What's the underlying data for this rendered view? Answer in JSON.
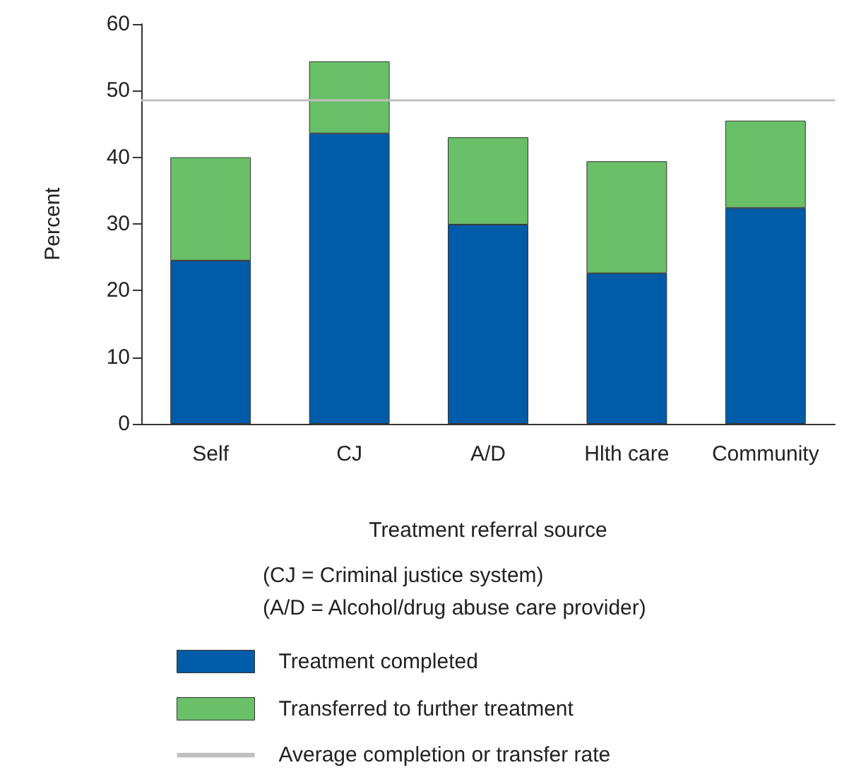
{
  "chart_data": {
    "type": "bar",
    "stacked": true,
    "xlabel": "Treatment referral source",
    "ylabel": "Percent",
    "categories": [
      "Self",
      "CJ",
      "A/D",
      "Hlth care",
      "Community"
    ],
    "series": [
      {
        "name": "Treatment completed",
        "color": "#005ba8",
        "values": [
          24.5,
          43.6,
          29.9,
          22.6,
          32.4
        ]
      },
      {
        "name": "Transferred to further treatment",
        "color": "#6abf69",
        "values": [
          15.5,
          10.8,
          13.1,
          16.8,
          13.1
        ]
      }
    ],
    "ylim": [
      0,
      60
    ],
    "yticks": [
      0,
      10,
      20,
      30,
      40,
      50,
      60
    ],
    "ref_lines": [
      {
        "axis": "y",
        "value": 48.6,
        "label": "Average completion or transfer rate",
        "color": "#bfbfbf"
      }
    ],
    "annotations": [
      "(CJ = Criminal justice system)",
      "(A/D = Alcohol/drug abuse care provider)"
    ],
    "legend": "bottom",
    "grid": false
  }
}
